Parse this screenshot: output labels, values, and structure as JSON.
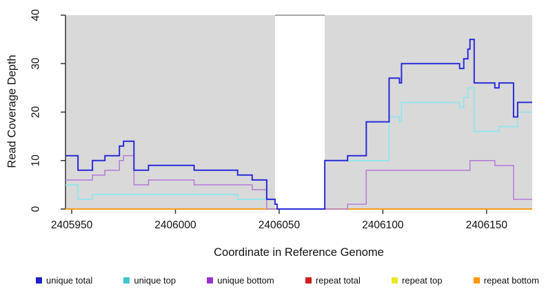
{
  "chart_data": {
    "type": "line",
    "step": true,
    "title": "",
    "xlabel": "Coordinate in Reference Genome",
    "ylabel": "Read Coverage Depth",
    "xlim": [
      2405947,
      2406172
    ],
    "ylim": [
      0,
      40
    ],
    "x_ticks": [
      2405950,
      2406000,
      2406050,
      2406100,
      2406150
    ],
    "y_ticks": [
      0,
      10,
      20,
      30,
      40
    ],
    "grid": false,
    "legend_position": "bottom",
    "plot_bg": "#d9d9d9",
    "axis_color": "#333333",
    "tick_label_color": "#111111",
    "gap_band": {
      "start": 2406048,
      "end": 2406072,
      "color": "#ffffff",
      "top_line_color": "#8a8a8a"
    },
    "series": [
      {
        "name": "unique total",
        "legend_color": "#1f1fcb",
        "line_color": "#2a2ad8",
        "line_width": 2,
        "steps": [
          [
            2405947,
            11
          ],
          [
            2405953,
            8
          ],
          [
            2405960,
            10
          ],
          [
            2405966,
            11
          ],
          [
            2405973,
            13
          ],
          [
            2405975,
            14
          ],
          [
            2405980,
            8
          ],
          [
            2405987,
            9
          ],
          [
            2406009,
            8
          ],
          [
            2406030,
            7
          ],
          [
            2406037,
            6
          ],
          [
            2406044,
            2
          ],
          [
            2406048,
            1
          ],
          [
            2406049,
            0
          ],
          [
            2406072,
            10
          ],
          [
            2406083,
            11
          ],
          [
            2406092,
            18
          ],
          [
            2406103,
            27
          ],
          [
            2406108,
            26
          ],
          [
            2406109,
            30
          ],
          [
            2406137,
            29
          ],
          [
            2406139,
            31
          ],
          [
            2406141,
            33
          ],
          [
            2406142,
            35
          ],
          [
            2406144,
            26
          ],
          [
            2406154,
            25
          ],
          [
            2406156,
            26
          ],
          [
            2406163,
            19
          ],
          [
            2406165,
            22
          ]
        ]
      },
      {
        "name": "unique top",
        "legend_color": "#45c5cf",
        "line_color": "#8ae8ef",
        "line_width": 1.6,
        "steps": [
          [
            2405947,
            5
          ],
          [
            2405953,
            2
          ],
          [
            2405960,
            3
          ],
          [
            2406030,
            2
          ],
          [
            2406048,
            1
          ],
          [
            2406049,
            0
          ],
          [
            2406072,
            10
          ],
          [
            2406103,
            19
          ],
          [
            2406108,
            18
          ],
          [
            2406109,
            22
          ],
          [
            2406137,
            21
          ],
          [
            2406139,
            23
          ],
          [
            2406141,
            25
          ],
          [
            2406144,
            16
          ],
          [
            2406156,
            17
          ],
          [
            2406165,
            20
          ]
        ]
      },
      {
        "name": "unique bottom",
        "legend_color": "#9932cc",
        "line_color": "#b67fd8",
        "line_width": 1.6,
        "steps": [
          [
            2405947,
            6
          ],
          [
            2405960,
            7
          ],
          [
            2405966,
            8
          ],
          [
            2405973,
            10
          ],
          [
            2405975,
            11
          ],
          [
            2405980,
            5
          ],
          [
            2405987,
            6
          ],
          [
            2406009,
            5
          ],
          [
            2406037,
            4
          ],
          [
            2406044,
            0
          ],
          [
            2406083,
            1
          ],
          [
            2406092,
            8
          ],
          [
            2406142,
            10
          ],
          [
            2406154,
            9
          ],
          [
            2406163,
            2
          ]
        ]
      },
      {
        "name": "repeat total",
        "legend_color": "#cc2020",
        "line_color": "#cc2020",
        "line_width": 1.6,
        "steps": [
          [
            2405947,
            0
          ]
        ]
      },
      {
        "name": "repeat top",
        "legend_color": "#e8e825",
        "line_color": "#e8e825",
        "line_width": 1.6,
        "steps": [
          [
            2405947,
            0
          ]
        ]
      },
      {
        "name": "repeat bottom",
        "legend_color": "#ff9900",
        "line_color": "#ffa011",
        "line_width": 1.6,
        "steps": [
          [
            2405947,
            0
          ]
        ]
      }
    ],
    "draw_order": [
      "repeat total",
      "repeat top",
      "repeat bottom",
      "unique bottom",
      "unique top",
      "unique total"
    ]
  }
}
